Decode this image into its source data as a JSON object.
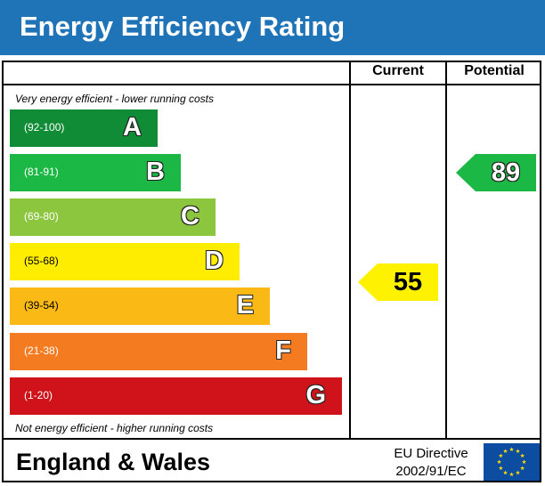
{
  "header": {
    "title": "Energy Efficiency Rating"
  },
  "columns": {
    "current": "Current",
    "potential": "Potential"
  },
  "notes": {
    "top": "Very energy efficient - lower running costs",
    "bottom": "Not energy efficient - higher running costs"
  },
  "chart_data": {
    "type": "bar",
    "title": "Energy Efficiency Rating",
    "categories": [
      "A",
      "B",
      "C",
      "D",
      "E",
      "F",
      "G"
    ],
    "ranges": [
      "(92-100)",
      "(81-91)",
      "(69-80)",
      "(55-68)",
      "(39-54)",
      "(21-38)",
      "(1-20)"
    ],
    "colors": [
      "#118c36",
      "#1cb845",
      "#8cc63f",
      "#ffed00",
      "#fbb915",
      "#f47b20",
      "#d0121b"
    ],
    "current": 55,
    "potential": 89,
    "current_color": "#fff200",
    "potential_color": "#1cb845"
  },
  "footer": {
    "region": "England & Wales",
    "directive_line1": "EU Directive",
    "directive_line2": "2002/91/EC",
    "flag_icon": "eu-flag-icon"
  }
}
